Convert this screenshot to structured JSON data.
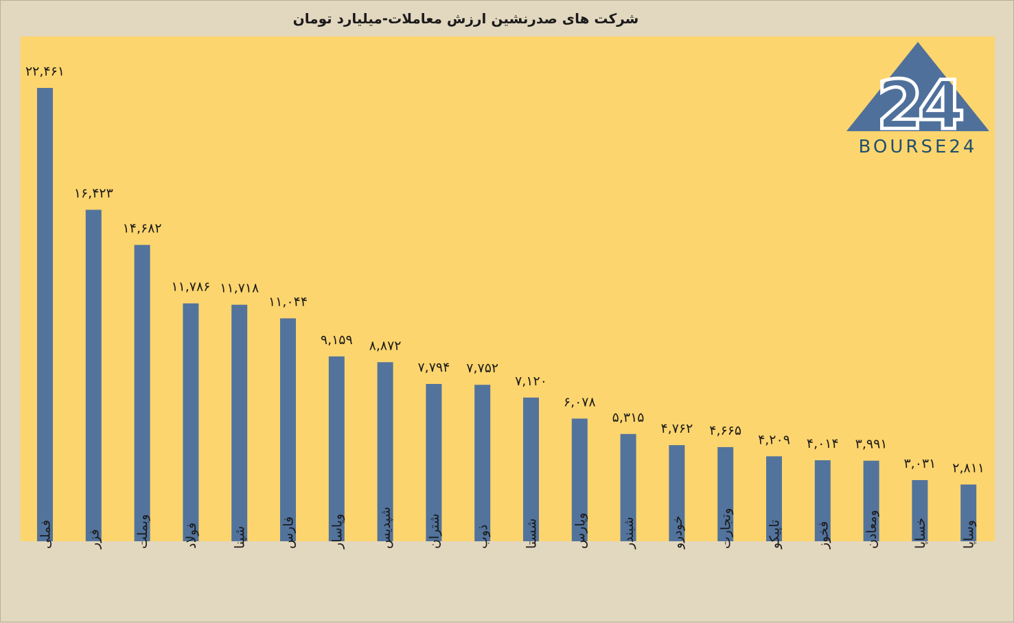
{
  "title": "شرکت های صدرنشین ارزش معاملات-میلیارد تومان",
  "logo": {
    "text": "BOURSE24",
    "number": "24"
  },
  "colors": {
    "bar": "#52739c",
    "plot": "#fdd56e",
    "outer": "#e2d7bf"
  },
  "chart_data": {
    "type": "bar",
    "title": "شرکت های صدرنشین ارزش معاملات-میلیارد تومان",
    "xlabel": "",
    "ylabel": "",
    "ylim": [
      0,
      25000
    ],
    "grid": false,
    "legend": "none",
    "categories": [
      "فملی",
      "فزر",
      "وبملت",
      "فولاد",
      "شپنا",
      "فارس",
      "وپاسار",
      "شپدیس",
      "شتران",
      "ذوب",
      "شستا",
      "وپارس",
      "شبندر",
      "خودرو",
      "وتجارت",
      "تاپیکو",
      "فخوز",
      "ومعادن",
      "خساپا",
      "وساپا"
    ],
    "values": [
      22461,
      16423,
      14682,
      11786,
      11718,
      11044,
      9159,
      8872,
      7794,
      7752,
      7120,
      6078,
      5315,
      4762,
      4665,
      4209,
      4014,
      3991,
      3031,
      2811
    ],
    "value_labels": [
      "۲۲,۴۶۱",
      "۱۶,۴۲۳",
      "۱۴,۶۸۲",
      "۱۱,۷۸۶",
      "۱۱,۷۱۸",
      "۱۱,۰۴۴",
      "۹,۱۵۹",
      "۸,۸۷۲",
      "۷,۷۹۴",
      "۷,۷۵۲",
      "۷,۱۲۰",
      "۶,۰۷۸",
      "۵,۳۱۵",
      "۴,۷۶۲",
      "۴,۶۶۵",
      "۴,۲۰۹",
      "۴,۰۱۴",
      "۳,۹۹۱",
      "۳,۰۳۱",
      "۲,۸۱۱"
    ]
  }
}
